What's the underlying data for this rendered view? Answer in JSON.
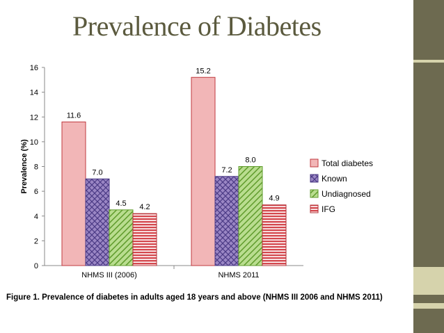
{
  "slide": {
    "title": "Prevalence of Diabetes",
    "colors": {
      "title": "#5b5a3e",
      "sidebar": "#6d6a50",
      "accent": "#d6d3ac"
    }
  },
  "chart_data": {
    "type": "bar",
    "ylabel": "Prevalence (%)",
    "xlabel": "",
    "ylim": [
      0,
      16
    ],
    "yticks": [
      0,
      2,
      4,
      6,
      8,
      10,
      12,
      14,
      16
    ],
    "categories": [
      "NHMS III (2006)",
      "NHMS 2011"
    ],
    "series": [
      {
        "name": "Total diabetes",
        "values": [
          11.6,
          15.2
        ],
        "labels": [
          "11.6",
          "15.2"
        ],
        "color": "#f2b6b7",
        "pattern": "solid"
      },
      {
        "name": "Known",
        "values": [
          7.0,
          7.2
        ],
        "labels": [
          "7.0",
          "7.2"
        ],
        "color": "#9a86c4",
        "pattern": "crosshatch"
      },
      {
        "name": "Undiagnosed",
        "values": [
          4.5,
          8.0
        ],
        "labels": [
          "4.5",
          "8.0"
        ],
        "color": "#93c45c",
        "pattern": "diagonal"
      },
      {
        "name": "IFG",
        "values": [
          4.2,
          4.9
        ],
        "labels": [
          "4.2",
          "4.9"
        ],
        "color": "#d4474d",
        "pattern": "horizontal"
      }
    ],
    "legend_position": "right",
    "caption": "Figure 1. Prevalence of diabetes in adults aged 18 years and above (NHMS III 2006 and NHMS 2011)"
  }
}
